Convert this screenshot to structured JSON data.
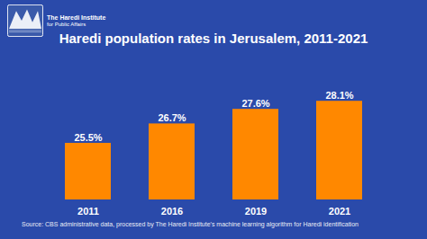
{
  "chart_data": {
    "type": "bar",
    "title": "Haredi population rates in Jerusalem, 2011-2021",
    "categories": [
      "2011",
      "2016",
      "2019",
      "2021"
    ],
    "values": [
      25.5,
      26.7,
      27.6,
      28.1
    ],
    "value_labels": [
      "25.5%",
      "26.7%",
      "27.6%",
      "28.1%"
    ],
    "color": "#FF8800",
    "ylim": [
      22,
      30
    ],
    "tick_labels": "x",
    "grid": false,
    "annotations": [
      "The Haredi Institute",
      "for Public Affairs",
      "Source: CBS administrative data, processed by The Haredi Institute's machine learning algorithm for Haredi identification"
    ]
  }
}
